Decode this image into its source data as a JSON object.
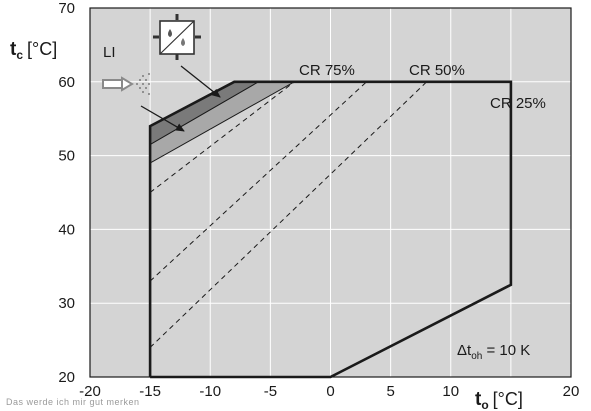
{
  "chart_data": {
    "type": "line",
    "xlabel_main": "t",
    "xlabel_sub": "o",
    "xlabel_unit": "[°C]",
    "ylabel_main": "t",
    "ylabel_sub": "c",
    "ylabel_unit": "[°C]",
    "xlim": [
      -20,
      20
    ],
    "ylim": [
      20,
      70
    ],
    "x_ticks": [
      -20,
      -15,
      -10,
      -5,
      0,
      5,
      10,
      15,
      20
    ],
    "x_tick_labels": [
      "-20",
      "-15",
      "-10",
      "-5",
      "0",
      "5",
      "10",
      "",
      "20"
    ],
    "y_ticks": [
      20,
      30,
      40,
      50,
      60,
      70
    ],
    "y_tick_labels": [
      "20",
      "30",
      "40",
      "50",
      "60",
      "70"
    ],
    "grid": true,
    "envelope": [
      [
        -15,
        20
      ],
      [
        0,
        20
      ],
      [
        15,
        32.5
      ],
      [
        15,
        60
      ],
      [
        -8,
        60
      ],
      [
        -15,
        54
      ],
      [
        -15,
        20
      ]
    ],
    "band_li": [
      [
        -15,
        54
      ],
      [
        -8,
        60
      ],
      [
        -6,
        60
      ],
      [
        -15,
        51.5
      ]
    ],
    "band_econ": [
      [
        -15,
        51.5
      ],
      [
        -6,
        60
      ],
      [
        -3,
        60
      ],
      [
        -15,
        49
      ]
    ],
    "cr_lines": [
      {
        "points": [
          [
            -15,
            24
          ],
          [
            8,
            60
          ]
        ]
      },
      {
        "points": [
          [
            -15,
            33
          ],
          [
            3,
            60
          ]
        ]
      },
      {
        "points": [
          [
            -15,
            45
          ],
          [
            -3,
            60
          ]
        ]
      }
    ],
    "annotations": {
      "li": "LI",
      "cr75": "CR 75%",
      "cr50": "CR 50%",
      "cr25": "CR  25%",
      "dt_prefix": "Δt",
      "dt_sub": "oh",
      "dt_value": " = 10 K"
    },
    "icons": [
      "liquid-injection-icon",
      "economizer-icon"
    ],
    "colors": {
      "plot_bg": "#d4d4d4",
      "grid": "#ffffff",
      "envelope": "#1a1a1a",
      "band_li": "#7a7a7a",
      "band_econ": "#a8a8a8",
      "arrow": "#888888"
    }
  },
  "footer_text": "Das werde ich mir gut merken"
}
